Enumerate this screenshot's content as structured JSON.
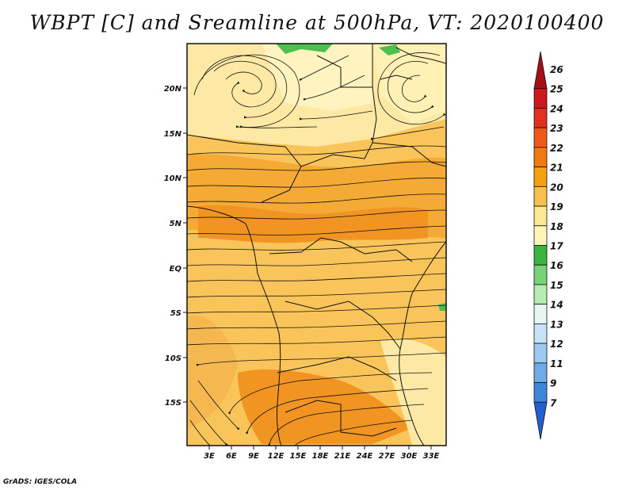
{
  "title": "WBPT [C] and Sreamline at 500hPa, VT: 2020100400",
  "credit": "GrADS: IGES/COLA",
  "map": {
    "lat_ticks": [
      "20N",
      "15N",
      "10N",
      "5N",
      "EQ",
      "5S",
      "10S",
      "15S"
    ],
    "lon_ticks": [
      "3E",
      "6E",
      "9E",
      "12E",
      "15E",
      "18E",
      "21E",
      "24E",
      "27E",
      "30E",
      "33E"
    ]
  },
  "colorbar": {
    "labels": [
      "26",
      "25",
      "24",
      "23",
      "22",
      "21",
      "20",
      "19",
      "18",
      "17",
      "16",
      "15",
      "14",
      "13",
      "12",
      "11",
      "9",
      "7"
    ],
    "colors": [
      "#a50f15",
      "#cb181d",
      "#e0301e",
      "#ef5a1a",
      "#f07a10",
      "#f4a010",
      "#f8c04a",
      "#fce890",
      "#fff5b8",
      "#39b43c",
      "#77d27a",
      "#b6ecb2",
      "#e4f7f2",
      "#c6e2f6",
      "#9dcaf0",
      "#6eaae8",
      "#3e86dc",
      "#1f5fcf"
    ]
  },
  "colors": {
    "field_light": "#fde9a4",
    "field_mid": "#f9c45a",
    "field_warm": "#f5aa35",
    "field_orange": "#f19422",
    "green_patch": "#4cbf4f"
  }
}
